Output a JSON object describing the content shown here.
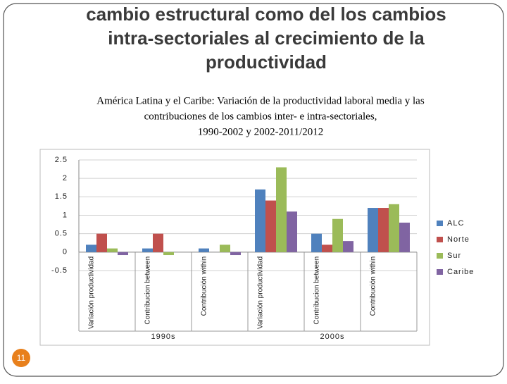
{
  "slide": {
    "title_lines": [
      "cambio estructural como del los cambios",
      "intra-sectoriales al crecimiento de la",
      "productividad"
    ],
    "slide_number": "11"
  },
  "chart_data": {
    "type": "bar",
    "title_lines": [
      "América Latina y el Caribe: Variación de la productividad laboral media y las",
      "contribuciones de los cambios inter- e intra-sectoriales,",
      "1990-2002 y 2002-2011/2012"
    ],
    "categories": [
      "Variación productividad",
      "Contribucion between",
      "Contribución within",
      "Variación productividad",
      "Contribucion between",
      "Contribución within"
    ],
    "groups": [
      "1990s",
      "2000s"
    ],
    "series": [
      {
        "name": "ALC",
        "color": "#4f81bd",
        "values": [
          0.2,
          0.1,
          0.1,
          1.7,
          0.5,
          1.2
        ]
      },
      {
        "name": "Norte",
        "color": "#c0504d",
        "values": [
          0.5,
          0.5,
          0,
          1.4,
          0.2,
          1.2
        ]
      },
      {
        "name": "Sur",
        "color": "#9bbb59",
        "values": [
          0.1,
          -0.08,
          0.2,
          2.3,
          0.9,
          1.3
        ]
      },
      {
        "name": "Caribe",
        "color": "#8064a2",
        "values": [
          -0.08,
          0,
          -0.08,
          1.1,
          0.3,
          0.8
        ]
      }
    ],
    "ylim": [
      -0.5,
      2.5
    ],
    "yticks": [
      -0.5,
      0,
      0.5,
      1,
      1.5,
      2,
      2.5
    ],
    "grid": true,
    "legend": "right"
  }
}
